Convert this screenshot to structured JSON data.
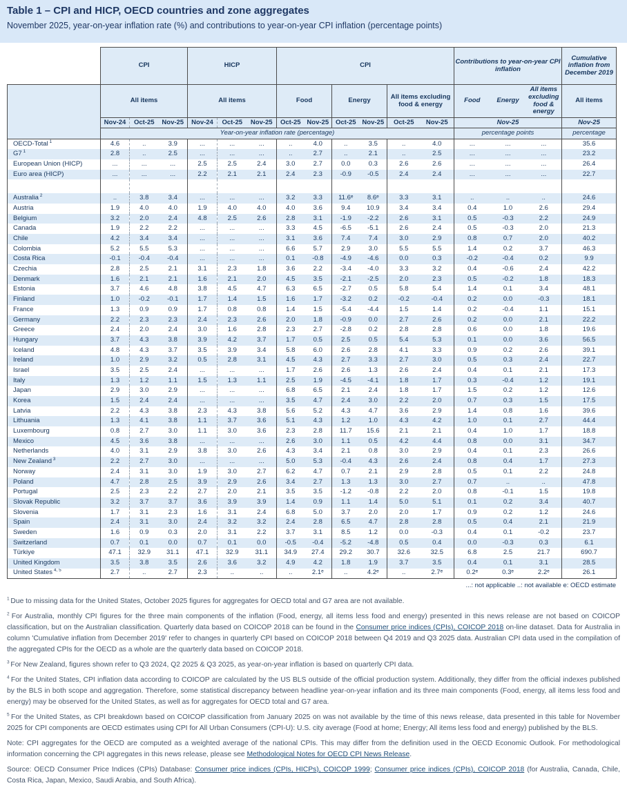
{
  "title": "Table 1 – CPI and HICP, OECD countries and zone aggregates",
  "subtitle": "November 2025, year-on-year inflation rate (%) and contributions to year-on-year CPI inflation (percentage points)",
  "header": {
    "groups": {
      "cpi": "CPI",
      "hicp": "HICP",
      "cpi_components": "CPI",
      "contributions": "Contributions to year-on-year CPI inflation",
      "cumulative": "Cumulative inflation from December 2019"
    },
    "sub": {
      "cpi_all_items": "All items",
      "hicp_all_items": "All items",
      "food": "Food",
      "energy": "Energy",
      "all_items_excl": "All items excluding food & energy",
      "contrib_food": "Food",
      "contrib_energy": "Energy",
      "contrib_all_items_excl": "All items excluding food & energy",
      "cumulative_all_items": "All items"
    },
    "dates": {
      "nov24": "Nov-24",
      "oct25": "Oct-25",
      "nov25": "Nov-25"
    },
    "units": {
      "yoy": "Year-on-year inflation rate (percentage)",
      "pp": "percentage points",
      "pct": "percentage"
    }
  },
  "legend": "...: not applicable   ..: not available   e: OECD estimate",
  "rows": [
    {
      "name": "OECD-Total",
      "sup": "1",
      "cells": [
        "4.6",
        "..",
        "3.9",
        "...",
        "...",
        "...",
        "..",
        "4.0",
        "..",
        "3.5",
        "..",
        "4.0",
        "...",
        "...",
        "...",
        "35.6"
      ]
    },
    {
      "name": "G7",
      "sup": "1",
      "cells": [
        "2.8",
        "..",
        "2.5",
        "...",
        "...",
        "...",
        "..",
        "2.7",
        "..",
        "2.1",
        "..",
        "2.5",
        "...",
        "...",
        "...",
        "23.2"
      ]
    },
    {
      "name": "European Union (HICP)",
      "cells": [
        "...",
        "...",
        "...",
        "2.5",
        "2.5",
        "2.4",
        "3.0",
        "2.7",
        "0.0",
        "0.3",
        "2.6",
        "2.6",
        "...",
        "...",
        "...",
        "26.4"
      ]
    },
    {
      "name": "Euro area (HICP)",
      "cells": [
        "...",
        "...",
        "...",
        "2.2",
        "2.1",
        "2.1",
        "2.4",
        "2.3",
        "-0.9",
        "-0.5",
        "2.4",
        "2.4",
        "...",
        "...",
        "...",
        "22.7"
      ]
    },
    {
      "gap": true
    },
    {
      "name": "Australia",
      "sup": "2",
      "cells": [
        "..",
        "3.8",
        "3.4",
        "...",
        "...",
        "...",
        "3.2",
        "3.3",
        "11.6ᵉ",
        "8.6ᵉ",
        "3.3",
        "3.1",
        "..",
        "..",
        "..",
        "24.6"
      ]
    },
    {
      "name": "Austria",
      "cells": [
        "1.9",
        "4.0",
        "4.0",
        "1.9",
        "4.0",
        "4.0",
        "4.0",
        "3.6",
        "9.4",
        "10.9",
        "3.4",
        "3.4",
        "0.4",
        "1.0",
        "2.6",
        "29.4"
      ]
    },
    {
      "name": "Belgium",
      "cells": [
        "3.2",
        "2.0",
        "2.4",
        "4.8",
        "2.5",
        "2.6",
        "2.8",
        "3.1",
        "-1.9",
        "-2.2",
        "2.6",
        "3.1",
        "0.5",
        "-0.3",
        "2.2",
        "24.9"
      ]
    },
    {
      "name": "Canada",
      "cells": [
        "1.9",
        "2.2",
        "2.2",
        "...",
        "...",
        "...",
        "3.3",
        "4.5",
        "-6.5",
        "-5.1",
        "2.6",
        "2.4",
        "0.5",
        "-0.3",
        "2.0",
        "21.3"
      ]
    },
    {
      "name": "Chile",
      "cells": [
        "4.2",
        "3.4",
        "3.4",
        "...",
        "...",
        "...",
        "3.1",
        "3.6",
        "7.4",
        "7.4",
        "3.0",
        "2.9",
        "0.8",
        "0.7",
        "2.0",
        "40.2"
      ]
    },
    {
      "name": "Colombia",
      "cells": [
        "5.2",
        "5.5",
        "5.3",
        "...",
        "...",
        "...",
        "6.6",
        "5.7",
        "2.9",
        "3.0",
        "5.5",
        "5.5",
        "1.4",
        "0.2",
        "3.7",
        "46.3"
      ]
    },
    {
      "name": "Costa Rica",
      "cells": [
        "-0.1",
        "-0.4",
        "-0.4",
        "...",
        "...",
        "...",
        "0.1",
        "-0.8",
        "-4.9",
        "-4.6",
        "0.0",
        "0.3",
        "-0.2",
        "-0.4",
        "0.2",
        "9.9"
      ]
    },
    {
      "name": "Czechia",
      "cells": [
        "2.8",
        "2.5",
        "2.1",
        "3.1",
        "2.3",
        "1.8",
        "3.6",
        "2.2",
        "-3.4",
        "-4.0",
        "3.3",
        "3.2",
        "0.4",
        "-0.6",
        "2.4",
        "42.2"
      ]
    },
    {
      "name": "Denmark",
      "cells": [
        "1.6",
        "2.1",
        "2.1",
        "1.6",
        "2.1",
        "2.0",
        "4.5",
        "3.5",
        "-2.1",
        "-2.5",
        "2.0",
        "2.3",
        "0.5",
        "-0.2",
        "1.8",
        "18.3"
      ]
    },
    {
      "name": "Estonia",
      "cells": [
        "3.7",
        "4.6",
        "4.8",
        "3.8",
        "4.5",
        "4.7",
        "6.3",
        "6.5",
        "-2.7",
        "0.5",
        "5.8",
        "5.4",
        "1.4",
        "0.1",
        "3.4",
        "48.1"
      ]
    },
    {
      "name": "Finland",
      "cells": [
        "1.0",
        "-0.2",
        "-0.1",
        "1.7",
        "1.4",
        "1.5",
        "1.6",
        "1.7",
        "-3.2",
        "0.2",
        "-0.2",
        "-0.4",
        "0.2",
        "0.0",
        "-0.3",
        "18.1"
      ]
    },
    {
      "name": "France",
      "cells": [
        "1.3",
        "0.9",
        "0.9",
        "1.7",
        "0.8",
        "0.8",
        "1.4",
        "1.5",
        "-5.4",
        "-4.4",
        "1.5",
        "1.4",
        "0.2",
        "-0.4",
        "1.1",
        "15.1"
      ]
    },
    {
      "name": "Germany",
      "cells": [
        "2.2",
        "2.3",
        "2.3",
        "2.4",
        "2.3",
        "2.6",
        "2.0",
        "1.8",
        "-0.9",
        "0.0",
        "2.7",
        "2.6",
        "0.2",
        "0.0",
        "2.1",
        "22.2"
      ]
    },
    {
      "name": "Greece",
      "cells": [
        "2.4",
        "2.0",
        "2.4",
        "3.0",
        "1.6",
        "2.8",
        "2.3",
        "2.7",
        "-2.8",
        "0.2",
        "2.8",
        "2.8",
        "0.6",
        "0.0",
        "1.8",
        "19.6"
      ]
    },
    {
      "name": "Hungary",
      "cells": [
        "3.7",
        "4.3",
        "3.8",
        "3.9",
        "4.2",
        "3.7",
        "1.7",
        "0.5",
        "2.5",
        "0.5",
        "5.4",
        "5.3",
        "0.1",
        "0.0",
        "3.6",
        "56.5"
      ]
    },
    {
      "name": "Iceland",
      "cells": [
        "4.8",
        "4.3",
        "3.7",
        "3.5",
        "3.9",
        "3.4",
        "5.8",
        "6.0",
        "2.6",
        "2.8",
        "4.1",
        "3.3",
        "0.9",
        "0.2",
        "2.6",
        "39.1"
      ]
    },
    {
      "name": "Ireland",
      "cells": [
        "1.0",
        "2.9",
        "3.2",
        "0.5",
        "2.8",
        "3.1",
        "4.5",
        "4.3",
        "2.7",
        "3.3",
        "2.7",
        "3.0",
        "0.5",
        "0.3",
        "2.4",
        "22.7"
      ]
    },
    {
      "name": "Israel",
      "cells": [
        "3.5",
        "2.5",
        "2.4",
        "...",
        "...",
        "...",
        "1.7",
        "2.6",
        "2.6",
        "1.3",
        "2.6",
        "2.4",
        "0.4",
        "0.1",
        "2.1",
        "17.3"
      ]
    },
    {
      "name": "Italy",
      "cells": [
        "1.3",
        "1.2",
        "1.1",
        "1.5",
        "1.3",
        "1.1",
        "2.5",
        "1.9",
        "-4.5",
        "-4.1",
        "1.8",
        "1.7",
        "0.3",
        "-0.4",
        "1.2",
        "19.1"
      ]
    },
    {
      "name": "Japan",
      "cells": [
        "2.9",
        "3.0",
        "2.9",
        "...",
        "...",
        "...",
        "6.8",
        "6.5",
        "2.1",
        "2.4",
        "1.8",
        "1.7",
        "1.5",
        "0.2",
        "1.2",
        "12.6"
      ]
    },
    {
      "name": "Korea",
      "cells": [
        "1.5",
        "2.4",
        "2.4",
        "...",
        "...",
        "...",
        "3.5",
        "4.7",
        "2.4",
        "3.0",
        "2.2",
        "2.0",
        "0.7",
        "0.3",
        "1.5",
        "17.5"
      ]
    },
    {
      "name": "Latvia",
      "cells": [
        "2.2",
        "4.3",
        "3.8",
        "2.3",
        "4.3",
        "3.8",
        "5.6",
        "5.2",
        "4.3",
        "4.7",
        "3.6",
        "2.9",
        "1.4",
        "0.8",
        "1.6",
        "39.6"
      ]
    },
    {
      "name": "Lithuania",
      "cells": [
        "1.3",
        "4.1",
        "3.8",
        "1.1",
        "3.7",
        "3.6",
        "5.1",
        "4.3",
        "1.2",
        "1.0",
        "4.3",
        "4.2",
        "1.0",
        "0.1",
        "2.7",
        "44.4"
      ]
    },
    {
      "name": "Luxembourg",
      "cells": [
        "0.8",
        "2.7",
        "3.0",
        "1.1",
        "3.0",
        "3.6",
        "2.3",
        "2.8",
        "11.7",
        "15.6",
        "2.1",
        "2.1",
        "0.4",
        "1.0",
        "1.7",
        "18.8"
      ]
    },
    {
      "name": "Mexico",
      "cells": [
        "4.5",
        "3.6",
        "3.8",
        "...",
        "...",
        "...",
        "2.6",
        "3.0",
        "1.1",
        "0.5",
        "4.2",
        "4.4",
        "0.8",
        "0.0",
        "3.1",
        "34.7"
      ]
    },
    {
      "name": "Netherlands",
      "cells": [
        "4.0",
        "3.1",
        "2.9",
        "3.8",
        "3.0",
        "2.6",
        "4.3",
        "3.4",
        "2.1",
        "0.8",
        "3.0",
        "2.9",
        "0.4",
        "0.1",
        "2.3",
        "26.6"
      ]
    },
    {
      "name": "New Zealand",
      "sup": "3",
      "cells": [
        "2.2",
        "2.7",
        "3.0",
        "...",
        "...",
        "...",
        "5.0",
        "5.3",
        "-0.4",
        "4.3",
        "2.6",
        "2.4",
        "0.8",
        "0.4",
        "1.7",
        "27.3"
      ]
    },
    {
      "name": "Norway",
      "cells": [
        "2.4",
        "3.1",
        "3.0",
        "1.9",
        "3.0",
        "2.7",
        "6.2",
        "4.7",
        "0.7",
        "2.1",
        "2.9",
        "2.8",
        "0.5",
        "0.1",
        "2.2",
        "24.8"
      ]
    },
    {
      "name": "Poland",
      "cells": [
        "4.7",
        "2.8",
        "2.5",
        "3.9",
        "2.9",
        "2.6",
        "3.4",
        "2.7",
        "1.3",
        "1.3",
        "3.0",
        "2.7",
        "0.7",
        "..",
        "..",
        "47.8"
      ]
    },
    {
      "name": "Portugal",
      "cells": [
        "2.5",
        "2.3",
        "2.2",
        "2.7",
        "2.0",
        "2.1",
        "3.5",
        "3.5",
        "-1.2",
        "-0.8",
        "2.2",
        "2.0",
        "0.8",
        "-0.1",
        "1.5",
        "19.8"
      ]
    },
    {
      "name": "Slovak Republic",
      "cells": [
        "3.2",
        "3.7",
        "3.7",
        "3.6",
        "3.9",
        "3.9",
        "1.4",
        "0.9",
        "1.1",
        "1.4",
        "5.0",
        "5.1",
        "0.1",
        "0.2",
        "3.4",
        "40.7"
      ]
    },
    {
      "name": "Slovenia",
      "cells": [
        "1.7",
        "3.1",
        "2.3",
        "1.6",
        "3.1",
        "2.4",
        "6.8",
        "5.0",
        "3.7",
        "2.0",
        "2.0",
        "1.7",
        "0.9",
        "0.2",
        "1.2",
        "24.6"
      ]
    },
    {
      "name": "Spain",
      "cells": [
        "2.4",
        "3.1",
        "3.0",
        "2.4",
        "3.2",
        "3.2",
        "2.4",
        "2.8",
        "6.5",
        "4.7",
        "2.8",
        "2.8",
        "0.5",
        "0.4",
        "2.1",
        "21.9"
      ]
    },
    {
      "name": "Sweden",
      "cells": [
        "1.6",
        "0.9",
        "0.3",
        "2.0",
        "3.1",
        "2.2",
        "3.7",
        "3.1",
        "8.5",
        "1.2",
        "0.0",
        "-0.3",
        "0.4",
        "0.1",
        "-0.2",
        "23.7"
      ]
    },
    {
      "name": "Switzerland",
      "cells": [
        "0.7",
        "0.1",
        "0.0",
        "0.7",
        "0.1",
        "0.0",
        "-0.5",
        "-0.4",
        "-5.2",
        "-4.8",
        "0.5",
        "0.4",
        "0.0",
        "-0.3",
        "0.3",
        "6.1"
      ]
    },
    {
      "name": "Türkiye",
      "cells": [
        "47.1",
        "32.9",
        "31.1",
        "47.1",
        "32.9",
        "31.1",
        "34.9",
        "27.4",
        "29.2",
        "30.7",
        "32.6",
        "32.5",
        "6.8",
        "2.5",
        "21.7",
        "690.7"
      ]
    },
    {
      "name": "United Kingdom",
      "cells": [
        "3.5",
        "3.8",
        "3.5",
        "2.6",
        "3.6",
        "3.2",
        "4.9",
        "4.2",
        "1.8",
        "1.9",
        "3.7",
        "3.5",
        "0.4",
        "0.1",
        "3.1",
        "28.5"
      ]
    },
    {
      "name": "United States",
      "sup": "4, 5",
      "cells": [
        "2.7",
        "..",
        "2.7",
        "2.3",
        "..",
        "..",
        "..",
        "2.1ᵉ",
        "..",
        "4.2ᵉ",
        "..",
        "2.7ᵉ",
        "0.2ᵉ",
        "0.3ᵉ",
        "2.2ᵉ",
        "26.1"
      ]
    }
  ],
  "footnotes": [
    {
      "marker": "1",
      "segments": [
        {
          "t": "text",
          "text": "Due to missing data for the United States, October 2025 figures for aggregates for OECD total and G7 area are not available."
        }
      ]
    },
    {
      "marker": "2",
      "segments": [
        {
          "t": "text",
          "text": "For Australia, monthly CPI figures for the three main components of the inflation (Food, energy, all items less food and energy) presented in this news release are not based on COICOP classification, but on the Australian classification. Quarterly data based on COICOP 2018 can be found in the "
        },
        {
          "t": "link",
          "text": "Consumer price indices (CPIs), COICOP 2018"
        },
        {
          "t": "text",
          "text": " on-line dataset. Data for Australia in column 'Cumulative inflation from December 2019' refer to changes in quarterly CPI based on COICOP 2018 between Q4 2019 and Q3 2025 data. Australian CPI data used in the compilation of the aggregated CPIs for the OECD as a whole are the quarterly data based on COICOP 2018."
        }
      ]
    },
    {
      "marker": "3",
      "segments": [
        {
          "t": "text",
          "text": "For New Zealand, figures shown refer to Q3 2024, Q2 2025 & Q3 2025, as year-on-year inflation is based on quarterly CPI data."
        }
      ]
    },
    {
      "marker": "4",
      "segments": [
        {
          "t": "text",
          "text": "For the United States, CPI inflation data according to COICOP are calculated by the US BLS outside of the official production system. Additionally, they differ from the official indexes published by the BLS in both scope and aggregation. Therefore, some statistical discrepancy between headline year-on-year inflation and its three main components (Food, energy, all items less food and energy) may be observed for the United States, as well as for aggregates for OECD total and G7 area."
        }
      ]
    },
    {
      "marker": "5",
      "segments": [
        {
          "t": "text",
          "text": "For the United States, as CPI breakdown based on COICOP classification from January 2025 on was not available by the time of this news release, data presented in this table for November 2025 for CPI components are OECD estimates using CPI for All Urban Consumers (CPI-U): U.S. city average (Food at home; Energy; All items less food and energy) published by the BLS."
        }
      ]
    },
    {
      "marker": "",
      "segments": [
        {
          "t": "text",
          "text": "Note: CPI aggregates for the OECD are computed as a weighted average of the national CPIs. This may differ from the definition used in the OECD Economic Outlook. For methodological information concerning the CPI aggregates in this news release, please see "
        },
        {
          "t": "link",
          "text": "Methodological Notes for OECD CPI News Release"
        },
        {
          "t": "text",
          "text": "."
        }
      ]
    },
    {
      "marker": "",
      "segments": [
        {
          "t": "text",
          "text": "Source: OECD Consumer Price Indices (CPIs) Database: "
        },
        {
          "t": "link",
          "text": "Consumer price indices (CPIs, HICPs), COICOP 1999"
        },
        {
          "t": "text",
          "text": "; "
        },
        {
          "t": "link",
          "text": "Consumer price indices (CPIs), COICOP 2018"
        },
        {
          "t": "text",
          "text": " (for Australia, Canada, Chile, Costa Rica, Japan, Mexico, Saudi Arabia, and South Africa)."
        }
      ]
    }
  ]
}
